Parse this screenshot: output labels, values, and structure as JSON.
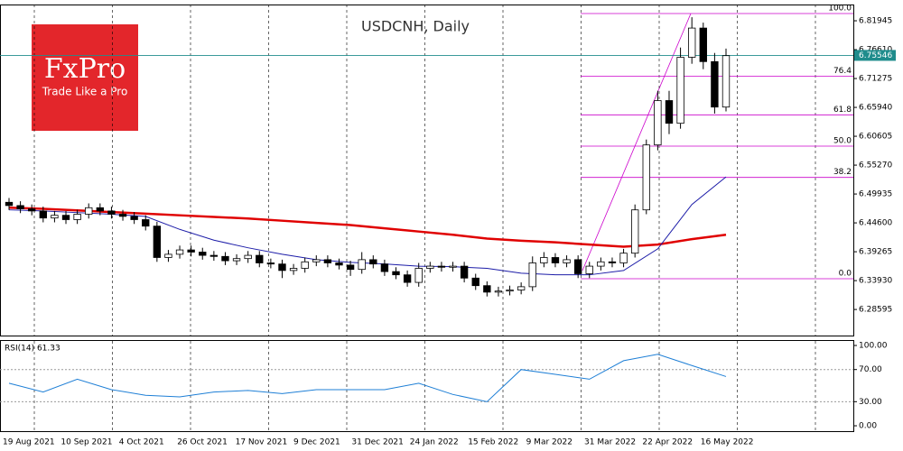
{
  "chart_data": {
    "type": "candlestick",
    "title": "USDCNH, Daily",
    "logo": {
      "name": "FxPro",
      "tagline": "Trade Like a Pro"
    },
    "x_labels": [
      "19 Aug 2021",
      "10 Sep 2021",
      "4 Oct 2021",
      "26 Oct 2021",
      "17 Nov 2021",
      "9 Dec 2021",
      "31 Dec 2021",
      "24 Jan 2022",
      "15 Feb 2022",
      "9 Mar 2022",
      "31 Mar 2022",
      "22 Apr 2022",
      "16 May 2022"
    ],
    "ylim": [
      6.2378,
      6.8495
    ],
    "yticks": [
      6.81945,
      {
        "value": 6.7661,
        "label": "6.76610"
      },
      6.71275,
      {
        "value": 6.6594,
        "label": "6.65940"
      },
      6.60605,
      {
        "value": 6.5527,
        "label": "6.55270"
      },
      6.49935,
      {
        "value": 6.446,
        "label": "6.44600"
      },
      6.39265,
      {
        "value": 6.3393,
        "label": "6.33930"
      },
      6.28595
    ],
    "last_price": 6.75546,
    "last_price_color": "#1f8c8c",
    "candles": {
      "open": [
        6.484,
        6.478,
        6.472,
        6.468,
        6.455,
        6.46,
        6.452,
        6.462,
        6.474,
        6.468,
        6.462,
        6.458,
        6.452,
        6.44,
        6.382,
        6.388,
        6.396,
        6.392,
        6.386,
        6.384,
        6.376,
        6.38,
        6.386,
        6.372,
        6.37,
        6.358,
        6.362,
        6.374,
        6.378,
        6.372,
        6.368,
        6.36,
        6.378,
        6.37,
        6.356,
        6.35,
        6.336,
        6.362,
        6.366,
        6.364,
        6.366,
        6.344,
        6.33,
        6.318,
        6.32,
        6.322,
        6.328,
        6.372,
        6.382,
        6.372,
        6.378,
        6.352,
        6.366,
        6.374,
        6.372,
        6.39,
        6.47,
        6.59,
        6.672,
        6.63,
        6.752,
        6.806,
        6.744,
        6.66
      ],
      "high": [
        6.492,
        6.486,
        6.48,
        6.476,
        6.468,
        6.468,
        6.47,
        6.482,
        6.482,
        6.476,
        6.47,
        6.466,
        6.46,
        6.448,
        6.396,
        6.404,
        6.404,
        6.4,
        6.394,
        6.392,
        6.388,
        6.394,
        6.394,
        6.38,
        6.378,
        6.37,
        6.382,
        6.386,
        6.386,
        6.38,
        6.376,
        6.392,
        6.386,
        6.378,
        6.364,
        6.358,
        6.372,
        6.374,
        6.374,
        6.374,
        6.374,
        6.352,
        6.338,
        6.328,
        6.33,
        6.336,
        6.384,
        6.392,
        6.39,
        6.386,
        6.386,
        6.374,
        6.382,
        6.382,
        6.398,
        6.48,
        6.6,
        6.69,
        6.69,
        6.77,
        6.826,
        6.816,
        6.76,
        6.768
      ],
      "low": [
        6.47,
        6.464,
        6.46,
        6.447,
        6.447,
        6.444,
        6.444,
        6.454,
        6.46,
        6.454,
        6.45,
        6.444,
        6.432,
        6.374,
        6.374,
        6.38,
        6.384,
        6.378,
        6.376,
        6.368,
        6.368,
        6.372,
        6.364,
        6.362,
        6.344,
        6.35,
        6.354,
        6.366,
        6.364,
        6.36,
        6.348,
        6.352,
        6.362,
        6.348,
        6.342,
        6.328,
        6.328,
        6.354,
        6.356,
        6.356,
        6.336,
        6.322,
        6.31,
        6.31,
        6.312,
        6.314,
        6.32,
        6.364,
        6.364,
        6.364,
        6.344,
        6.344,
        6.358,
        6.364,
        6.364,
        6.382,
        6.462,
        6.58,
        6.61,
        6.62,
        6.74,
        6.73,
        6.648,
        6.652
      ],
      "close": [
        6.478,
        6.472,
        6.468,
        6.455,
        6.46,
        6.452,
        6.462,
        6.474,
        6.468,
        6.462,
        6.458,
        6.452,
        6.44,
        6.382,
        6.388,
        6.396,
        6.392,
        6.386,
        6.384,
        6.376,
        6.38,
        6.386,
        6.372,
        6.37,
        6.358,
        6.362,
        6.374,
        6.378,
        6.372,
        6.368,
        6.36,
        6.378,
        6.37,
        6.356,
        6.35,
        6.336,
        6.362,
        6.366,
        6.364,
        6.366,
        6.344,
        6.33,
        6.318,
        6.32,
        6.322,
        6.328,
        6.372,
        6.382,
        6.372,
        6.378,
        6.352,
        6.366,
        6.374,
        6.372,
        6.39,
        6.47,
        6.59,
        6.672,
        6.63,
        6.752,
        6.806,
        6.744,
        6.66,
        6.755
      ]
    },
    "moving_averages": [
      {
        "color": "#e00000",
        "values": [
          6.474,
          6.472,
          6.469,
          6.466,
          6.463,
          6.46,
          6.457,
          6.454,
          6.45,
          6.446,
          6.442,
          6.436,
          6.43,
          6.424,
          6.417,
          6.413,
          6.41,
          6.406,
          6.402,
          6.406,
          6.416,
          6.424
        ]
      },
      {
        "color": "#1c1ca8",
        "values": [
          6.47,
          6.468,
          6.465,
          6.462,
          6.458,
          6.434,
          6.414,
          6.4,
          6.388,
          6.378,
          6.373,
          6.37,
          6.366,
          6.365,
          6.362,
          6.353,
          6.35,
          6.35,
          6.358,
          6.398,
          6.48,
          6.531
        ]
      }
    ],
    "fibonacci": {
      "color": "#cc00cc",
      "low": 6.3428,
      "high": 6.8328,
      "levels": [
        {
          "value": 100,
          "label": "100.0"
        },
        {
          "value": 76.4,
          "label": "76.4"
        },
        {
          "value": 61.8,
          "label": "61.8"
        },
        {
          "value": 50,
          "label": "50.0"
        },
        {
          "value": 38.2,
          "label": "38.2"
        },
        {
          "value": 0,
          "label": "0.0"
        }
      ]
    },
    "rsi": {
      "label": "RSI(14) 61.33",
      "color": "#1e7fd6",
      "ylim": [
        -6.7,
        105.6
      ],
      "yticks": [
        {
          "value": 100,
          "label": "100.00"
        },
        {
          "value": 70,
          "label": "70.00"
        },
        {
          "value": 30,
          "label": "30.00"
        },
        {
          "value": 0,
          "label": "0.00"
        }
      ],
      "levels": [
        70,
        30
      ],
      "values": [
        53,
        42,
        58,
        45,
        38,
        36,
        42,
        44,
        40,
        45,
        45,
        45,
        53,
        39,
        30,
        70,
        64,
        58,
        81,
        89,
        75,
        61.33
      ]
    }
  }
}
